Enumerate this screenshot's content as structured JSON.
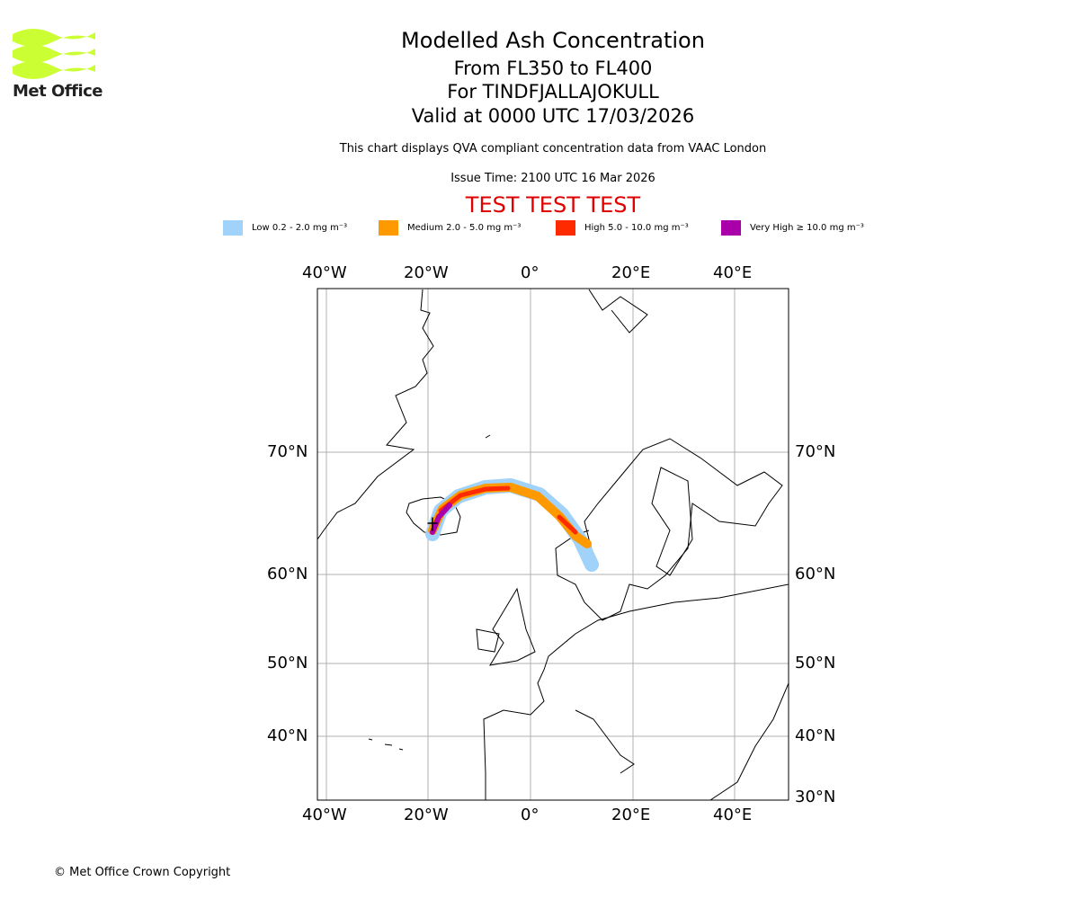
{
  "logo": {
    "text": "Met Office",
    "color": "#ccff33"
  },
  "header": {
    "title": "Modelled Ash Concentration",
    "levels": "From FL350 to FL400",
    "volcano": "For TINDFJALLAJOKULL",
    "valid": "Valid at 0000 UTC 17/03/2026",
    "description": "This chart displays QVA compliant concentration data from VAAC London",
    "issue_time": "Issue Time: 2100 UTC 16 Mar 2026",
    "test_banner": "TEST TEST TEST"
  },
  "legend": [
    {
      "label": "Low 0.2 - 2.0 mg m⁻³",
      "color": "#a0d2fa"
    },
    {
      "label": "Medium 2.0 - 5.0 mg m⁻³",
      "color": "#ff9900"
    },
    {
      "label": "High 5.0 - 10.0 mg m⁻³",
      "color": "#ff2a00"
    },
    {
      "label": "Very High  ≥  10.0 mg m⁻³",
      "color": "#aa00aa"
    }
  ],
  "map": {
    "lon_ticks": [
      "40°W",
      "20°W",
      "0°",
      "20°E",
      "40°E"
    ],
    "lat_ticks_left": [
      "70°N",
      "60°N",
      "50°N",
      "40°N"
    ],
    "lat_ticks_right": [
      "70°N",
      "60°N",
      "50°N",
      "40°N",
      "30°N"
    ]
  },
  "footer": {
    "copyright": "© Met Office Crown Copyright"
  }
}
